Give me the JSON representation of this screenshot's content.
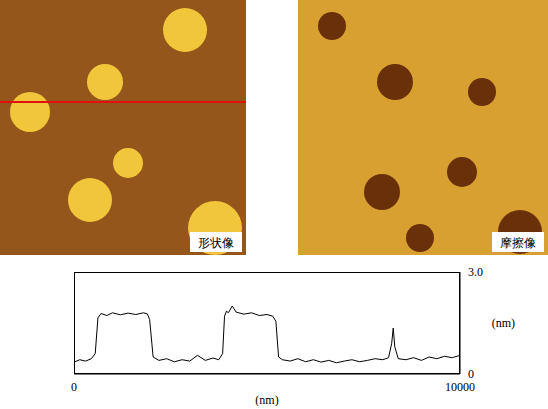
{
  "images": [
    {
      "label": "形状像"
    },
    {
      "label": "摩擦像"
    }
  ],
  "chart_data": {
    "type": "line",
    "x_label": "(nm)",
    "y_label": "(nm)",
    "xlim": [
      0,
      10000
    ],
    "xticks": [
      0,
      10000
    ],
    "ylim": [
      0,
      3
    ],
    "yticks": [
      0,
      {
        "value": 3,
        "label": "3.0"
      }
    ],
    "grid": false,
    "color": "#000000",
    "x": [
      0,
      150,
      300,
      450,
      550,
      620,
      700,
      850,
      1000,
      1200,
      1400,
      1600,
      1800,
      1900,
      1960,
      2050,
      2200,
      2400,
      2600,
      2800,
      3000,
      3200,
      3400,
      3600,
      3750,
      3850,
      3900,
      3950,
      4000,
      4100,
      4200,
      4400,
      4600,
      4800,
      5000,
      5150,
      5230,
      5300,
      5400,
      5600,
      5800,
      6000,
      6200,
      6400,
      6600,
      6800,
      7000,
      7200,
      7400,
      7600,
      7800,
      8000,
      8150,
      8230,
      8270,
      8310,
      8400,
      8600,
      8800,
      9000,
      9200,
      9400,
      9600,
      9800,
      10000
    ],
    "values": [
      0.35,
      0.42,
      0.38,
      0.45,
      0.6,
      1.65,
      1.78,
      1.72,
      1.8,
      1.74,
      1.79,
      1.75,
      1.8,
      1.77,
      1.6,
      0.5,
      0.4,
      0.45,
      0.36,
      0.42,
      0.38,
      0.55,
      0.4,
      0.47,
      0.42,
      0.6,
      1.7,
      1.85,
      1.8,
      2.0,
      1.82,
      1.76,
      1.8,
      1.72,
      1.75,
      1.7,
      1.55,
      0.5,
      0.42,
      0.38,
      0.45,
      0.36,
      0.42,
      0.35,
      0.4,
      0.33,
      0.38,
      0.42,
      0.36,
      0.4,
      0.45,
      0.42,
      0.48,
      0.9,
      1.35,
      0.8,
      0.45,
      0.42,
      0.48,
      0.4,
      0.5,
      0.45,
      0.52,
      0.48,
      0.55
    ]
  }
}
